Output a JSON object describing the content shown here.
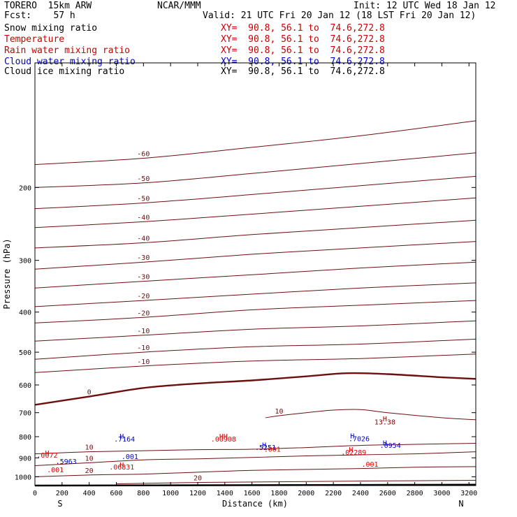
{
  "header": {
    "model": "TORERO  15km ARW",
    "center": "NCAR/MMM",
    "fcst": "Fcst:    57 h",
    "init": "Init: 12 UTC Wed 18 Jan 12",
    "valid": "Valid: 21 UTC Fri 20 Jan 12 (18 LST Fri 20 Jan 12)"
  },
  "legend": [
    {
      "label": "Snow mixing ratio",
      "xs": "XY=  90.8, 56.1 to  74.6,272.8",
      "color": "#000000"
    },
    {
      "label": "Temperature",
      "xs": "XY=  90.8, 56.1 to  74.6,272.8",
      "color": "#cc0000"
    },
    {
      "label": "Rain water mixing ratio",
      "xs": "XY=  90.8, 56.1 to  74.6,272.8",
      "color": "#cc0000"
    },
    {
      "label": "Cloud water mixing ratio",
      "xs": "XY=  90.8, 56.1 to  74.6,272.8",
      "color": "#0000cc"
    },
    {
      "label": "Cloud ice mixing ratio",
      "xs": "XY=  90.8, 56.1 to  74.6,272.8",
      "color": "#000000"
    }
  ],
  "colors": {
    "temperature": "#6b0f0f",
    "rain": "#e00000",
    "cloud_water": "#0000cc",
    "terrain": "#000000"
  },
  "chart_data": {
    "type": "line",
    "xlabel": "Distance (km)",
    "ylabel": "Pressure (hPa)",
    "xlim": [
      0,
      3250
    ],
    "ylim": [
      1050,
      100
    ],
    "y_scale": "log",
    "x_ticks": [
      0,
      200,
      400,
      600,
      800,
      1000,
      1200,
      1400,
      1600,
      1800,
      2000,
      2200,
      2400,
      2600,
      2800,
      3000,
      3200
    ],
    "y_ticks": [
      200,
      300,
      400,
      500,
      600,
      700,
      800,
      900,
      1000
    ],
    "x_end_labels": {
      "left": "S",
      "right": "N"
    },
    "temperature_isotherms": [
      {
        "level": -60,
        "x": [
          0,
          800,
          1600,
          2400,
          3250
        ],
        "p": [
          176,
          170,
          160,
          150,
          138
        ]
      },
      {
        "level": -50,
        "x": [
          0,
          800,
          1600,
          2400,
          3250
        ],
        "p": [
          200,
          195,
          185,
          175,
          165
        ]
      },
      {
        "level": -50,
        "x": [
          0,
          800,
          1600,
          2400,
          3250
        ],
        "p": [
          225,
          218,
          208,
          198,
          188
        ]
      },
      {
        "level": -40,
        "x": [
          0,
          800,
          1600,
          2400,
          3250
        ],
        "p": [
          250,
          242,
          232,
          222,
          212
        ]
      },
      {
        "level": -40,
        "x": [
          0,
          800,
          1600,
          2400,
          3250
        ],
        "p": [
          280,
          272,
          260,
          250,
          240
        ]
      },
      {
        "level": -30,
        "x": [
          0,
          800,
          1600,
          2400,
          3250
        ],
        "p": [
          315,
          303,
          290,
          280,
          270
        ]
      },
      {
        "level": -30,
        "x": [
          0,
          800,
          1600,
          2400,
          3250
        ],
        "p": [
          350,
          337,
          325,
          313,
          303
        ]
      },
      {
        "level": -20,
        "x": [
          0,
          800,
          1600,
          2400,
          3250
        ],
        "p": [
          388,
          375,
          362,
          350,
          340
        ]
      },
      {
        "level": -20,
        "x": [
          0,
          800,
          1600,
          2400,
          3250
        ],
        "p": [
          425,
          412,
          395,
          385,
          375
        ]
      },
      {
        "level": -10,
        "x": [
          0,
          800,
          1600,
          2400,
          3250
        ],
        "p": [
          470,
          455,
          440,
          432,
          420
        ]
      },
      {
        "level": -10,
        "x": [
          0,
          800,
          1600,
          2400,
          3250
        ],
        "p": [
          520,
          500,
          485,
          478,
          465
        ]
      },
      {
        "level": -10,
        "x": [
          0,
          800,
          1600,
          2400,
          3250
        ],
        "p": [
          560,
          540,
          525,
          518,
          505
        ]
      },
      {
        "level": 0,
        "x": [
          0,
          400,
          800,
          1200,
          1600,
          2000,
          2300,
          2600,
          3000,
          3250
        ],
        "p": [
          670,
          640,
          610,
          595,
          585,
          572,
          562,
          565,
          575,
          580
        ]
      },
      {
        "level": 10,
        "x": [
          1700,
          1800,
          2000,
          2200,
          2400,
          2600,
          3000,
          3250
        ],
        "p": [
          720,
          712,
          700,
          690,
          688,
          700,
          720,
          728
        ]
      },
      {
        "level": 10,
        "x": [
          0,
          400,
          800,
          1200,
          1600,
          2000,
          2400,
          2800,
          3250
        ],
        "p": [
          880,
          870,
          865,
          860,
          858,
          850,
          840,
          835,
          830
        ]
      },
      {
        "level": 10,
        "x": [
          0,
          400,
          800,
          1200,
          1600,
          2000,
          2400,
          2800,
          3250
        ],
        "p": [
          940,
          925,
          910,
          905,
          898,
          890,
          885,
          880,
          870
        ]
      },
      {
        "level": 20,
        "x": [
          0,
          400,
          800,
          1200,
          1600,
          2000,
          2400,
          2800,
          3250
        ],
        "p": [
          1000,
          990,
          985,
          975,
          965,
          960,
          955,
          948,
          945
        ]
      },
      {
        "level": 20,
        "x": [
          600,
          1200,
          1800,
          2400,
          3250
        ],
        "p": [
          1040,
          1032,
          1028,
          1024,
          1020
        ]
      }
    ],
    "terrain_surface": {
      "x": [
        0,
        3250
      ],
      "p": [
        1050,
        1045
      ]
    },
    "annotations": [
      {
        "text": "H",
        "x": 2580,
        "p": 735,
        "kind": "temperature"
      },
      {
        "text": "13.38",
        "x": 2580,
        "p": 748,
        "kind": "temperature"
      },
      {
        "text": "H",
        "x": 90,
        "p": 888,
        "kind": "rain"
      },
      {
        "text": ".0072",
        "x": 90,
        "p": 898,
        "kind": "rain"
      },
      {
        "text": ".001",
        "x": 150,
        "p": 975,
        "kind": "rain"
      },
      {
        "text": ".5963",
        "x": 230,
        "p": 930,
        "kind": "cloud"
      },
      {
        "text": "H",
        "x": 640,
        "p": 950,
        "kind": "rain"
      },
      {
        "text": ".06831",
        "x": 640,
        "p": 960,
        "kind": "rain"
      },
      {
        "text": ".001",
        "x": 700,
        "p": 905,
        "kind": "cloud"
      },
      {
        "text": "H",
        "x": 640,
        "p": 810,
        "kind": "cloud"
      },
      {
        "text": ".7164",
        "x": 660,
        "p": 822,
        "kind": "cloud"
      },
      {
        "text": "HH",
        "x": 1390,
        "p": 810,
        "kind": "rain"
      },
      {
        "text": ".00908",
        "x": 1390,
        "p": 822,
        "kind": "rain"
      },
      {
        "text": "H",
        "x": 1690,
        "p": 850,
        "kind": "cloud"
      },
      {
        "text": ".5251",
        "x": 1700,
        "p": 862,
        "kind": "cloud"
      },
      {
        "text": ".001",
        "x": 1750,
        "p": 870,
        "kind": "rain"
      },
      {
        "text": "H",
        "x": 2340,
        "p": 808,
        "kind": "cloud"
      },
      {
        "text": ".7026",
        "x": 2390,
        "p": 820,
        "kind": "cloud"
      },
      {
        "text": "H",
        "x": 2330,
        "p": 872,
        "kind": "rain"
      },
      {
        "text": ".02289",
        "x": 2350,
        "p": 885,
        "kind": "rain"
      },
      {
        "text": "H",
        "x": 2580,
        "p": 840,
        "kind": "cloud"
      },
      {
        "text": ".0954",
        "x": 2620,
        "p": 852,
        "kind": "cloud"
      },
      {
        "text": ".001",
        "x": 2470,
        "p": 945,
        "kind": "rain"
      }
    ]
  }
}
